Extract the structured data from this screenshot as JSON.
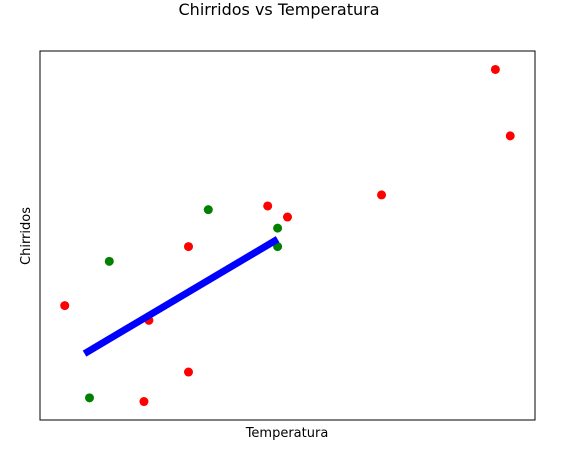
{
  "chart_data": {
    "type": "scatter",
    "title": "Chirridos vs Temperatura",
    "xlabel": "Temperatura",
    "ylabel": "Chirridos",
    "xticks": [],
    "yticks": [],
    "xlim": [
      0,
      100
    ],
    "ylim": [
      0,
      100
    ],
    "grid": false,
    "series": [
      {
        "color": "#ff0000",
        "kind": "points",
        "x": [
          5,
          21,
          22,
          30,
          30,
          46,
          50,
          69,
          92,
          95
        ],
        "y": [
          31,
          5,
          27,
          13,
          47,
          58,
          55,
          61,
          95,
          77
        ]
      },
      {
        "color": "#008000",
        "kind": "points",
        "x": [
          10,
          14,
          34,
          48,
          48
        ],
        "y": [
          6,
          43,
          57,
          52,
          47
        ]
      },
      {
        "color": "#0000ff",
        "kind": "line",
        "x": [
          9,
          48
        ],
        "y": [
          18,
          49
        ]
      }
    ]
  }
}
